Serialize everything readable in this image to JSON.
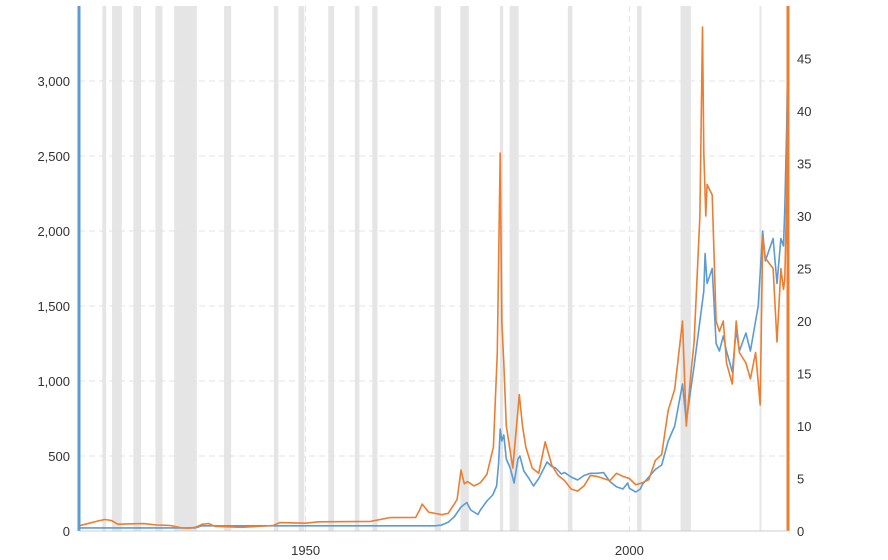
{
  "chart_data": {
    "type": "line",
    "title": "",
    "xlabel": "",
    "ylabel_left": "",
    "ylabel_right": "",
    "x_range": [
      1915,
      2024.5
    ],
    "x_ticks": [
      {
        "value": 1950,
        "label": "1950"
      },
      {
        "value": 2000,
        "label": "2000"
      }
    ],
    "ylim_left": [
      0,
      3500
    ],
    "y_ticks_left": [
      {
        "value": 0,
        "label": "0"
      },
      {
        "value": 500,
        "label": "500"
      },
      {
        "value": 1000,
        "label": "1,000"
      },
      {
        "value": 1500,
        "label": "1,500"
      },
      {
        "value": 2000,
        "label": "2,000"
      },
      {
        "value": 2500,
        "label": "2,500"
      },
      {
        "value": 3000,
        "label": "3,000"
      }
    ],
    "ylim_right": [
      0,
      50
    ],
    "y_ticks_right": [
      {
        "value": 0,
        "label": "0"
      },
      {
        "value": 5,
        "label": "5"
      },
      {
        "value": 10,
        "label": "10"
      },
      {
        "value": 15,
        "label": "15"
      },
      {
        "value": 20,
        "label": "20"
      },
      {
        "value": 25,
        "label": "25"
      },
      {
        "value": 30,
        "label": "30"
      },
      {
        "value": 35,
        "label": "35"
      },
      {
        "value": 40,
        "label": "40"
      },
      {
        "value": 45,
        "label": "45"
      }
    ],
    "grid": true,
    "legend": "none",
    "recessions": [
      [
        1918.6,
        1919.2
      ],
      [
        1920.1,
        1921.6
      ],
      [
        1923.4,
        1924.6
      ],
      [
        1926.8,
        1927.9
      ],
      [
        1929.7,
        1933.2
      ],
      [
        1937.4,
        1938.5
      ],
      [
        1945.1,
        1945.8
      ],
      [
        1948.9,
        1949.8
      ],
      [
        1953.5,
        1954.4
      ],
      [
        1957.6,
        1958.3
      ],
      [
        1960.3,
        1961.1
      ],
      [
        1969.9,
        1970.9
      ],
      [
        1973.9,
        1975.2
      ],
      [
        1980.0,
        1980.5
      ],
      [
        1981.5,
        1982.9
      ],
      [
        1990.5,
        1991.2
      ],
      [
        2001.2,
        2001.9
      ],
      [
        2007.9,
        2009.5
      ],
      [
        2020.1,
        2020.4
      ]
    ],
    "series": [
      {
        "axis": "left",
        "color": "#5b9bd5",
        "points": [
          [
            1915,
            20.7
          ],
          [
            1933,
            20.7
          ],
          [
            1934,
            35
          ],
          [
            1970,
            35
          ],
          [
            1971,
            40
          ],
          [
            1972,
            58
          ],
          [
            1973,
            97
          ],
          [
            1974,
            160
          ],
          [
            1974.9,
            190
          ],
          [
            1975.5,
            140
          ],
          [
            1976.6,
            110
          ],
          [
            1977,
            140
          ],
          [
            1978,
            200
          ],
          [
            1978.9,
            240
          ],
          [
            1979.5,
            300
          ],
          [
            1979.8,
            450
          ],
          [
            1980.05,
            680
          ],
          [
            1980.3,
            600
          ],
          [
            1980.6,
            640
          ],
          [
            1981,
            480
          ],
          [
            1981.6,
            420
          ],
          [
            1982.2,
            320
          ],
          [
            1982.8,
            480
          ],
          [
            1983.1,
            500
          ],
          [
            1983.7,
            400
          ],
          [
            1984.5,
            350
          ],
          [
            1985.2,
            300
          ],
          [
            1986,
            350
          ],
          [
            1987.3,
            460
          ],
          [
            1988,
            430
          ],
          [
            1988.6,
            420
          ],
          [
            1989.5,
            380
          ],
          [
            1990,
            390
          ],
          [
            1991,
            360
          ],
          [
            1992,
            340
          ],
          [
            1993,
            370
          ],
          [
            1994,
            385
          ],
          [
            1995,
            385
          ],
          [
            1996,
            390
          ],
          [
            1997,
            330
          ],
          [
            1998,
            295
          ],
          [
            1999,
            280
          ],
          [
            1999.75,
            320
          ],
          [
            2000,
            285
          ],
          [
            2001,
            260
          ],
          [
            2001.7,
            280
          ],
          [
            2002,
            310
          ],
          [
            2003,
            360
          ],
          [
            2004,
            410
          ],
          [
            2005,
            440
          ],
          [
            2006,
            600
          ],
          [
            2007,
            700
          ],
          [
            2008.2,
            980
          ],
          [
            2008.8,
            730
          ],
          [
            2009.5,
            950
          ],
          [
            2010,
            1100
          ],
          [
            2010.9,
            1400
          ],
          [
            2011.5,
            1600
          ],
          [
            2011.7,
            1850
          ],
          [
            2012,
            1650
          ],
          [
            2012.8,
            1750
          ],
          [
            2013.4,
            1250
          ],
          [
            2013.9,
            1200
          ],
          [
            2014.5,
            1300
          ],
          [
            2015,
            1200
          ],
          [
            2015.9,
            1060
          ],
          [
            2016.5,
            1340
          ],
          [
            2017,
            1200
          ],
          [
            2018,
            1320
          ],
          [
            2018.7,
            1200
          ],
          [
            2019.5,
            1400
          ],
          [
            2019.9,
            1500
          ],
          [
            2020.6,
            2000
          ],
          [
            2021,
            1800
          ],
          [
            2022.2,
            1950
          ],
          [
            2022.8,
            1650
          ],
          [
            2023.4,
            1950
          ],
          [
            2023.8,
            1900
          ],
          [
            2024,
            2150
          ],
          [
            2024.3,
            2700
          ],
          [
            2024.5,
            3300
          ]
        ]
      },
      {
        "axis": "right",
        "color": "#ed7d31",
        "points": [
          [
            1915,
            0.5
          ],
          [
            1916,
            0.65
          ],
          [
            1918,
            0.96
          ],
          [
            1919,
            1.1
          ],
          [
            1920,
            1.0
          ],
          [
            1921,
            0.65
          ],
          [
            1925,
            0.7
          ],
          [
            1927,
            0.57
          ],
          [
            1929,
            0.53
          ],
          [
            1931,
            0.29
          ],
          [
            1932,
            0.28
          ],
          [
            1933,
            0.35
          ],
          [
            1934,
            0.64
          ],
          [
            1935,
            0.71
          ],
          [
            1936,
            0.45
          ],
          [
            1940,
            0.35
          ],
          [
            1945,
            0.52
          ],
          [
            1946,
            0.8
          ],
          [
            1950,
            0.74
          ],
          [
            1952,
            0.88
          ],
          [
            1960,
            0.91
          ],
          [
            1963,
            1.28
          ],
          [
            1967,
            1.3
          ],
          [
            1967.6,
            2.0
          ],
          [
            1968,
            2.56
          ],
          [
            1969,
            1.8
          ],
          [
            1971,
            1.55
          ],
          [
            1972,
            1.68
          ],
          [
            1973,
            2.6
          ],
          [
            1973.4,
            3.0
          ],
          [
            1974,
            5.8
          ],
          [
            1974.5,
            4.5
          ],
          [
            1975,
            4.7
          ],
          [
            1976,
            4.3
          ],
          [
            1977,
            4.6
          ],
          [
            1978,
            5.4
          ],
          [
            1979,
            8.0
          ],
          [
            1979.6,
            17
          ],
          [
            1980.05,
            36
          ],
          [
            1980.3,
            20
          ],
          [
            1980.6,
            16
          ],
          [
            1981,
            10
          ],
          [
            1982,
            6.0
          ],
          [
            1983,
            13.0
          ],
          [
            1983.5,
            10
          ],
          [
            1984,
            8
          ],
          [
            1985,
            6.0
          ],
          [
            1986,
            5.5
          ],
          [
            1987,
            8.5
          ],
          [
            1988,
            6.3
          ],
          [
            1989,
            5.3
          ],
          [
            1990,
            4.8
          ],
          [
            1991,
            4.0
          ],
          [
            1992,
            3.8
          ],
          [
            1993,
            4.3
          ],
          [
            1994,
            5.3
          ],
          [
            1995,
            5.2
          ],
          [
            1996,
            5.0
          ],
          [
            1997,
            4.8
          ],
          [
            1998,
            5.5
          ],
          [
            1999,
            5.2
          ],
          [
            2000,
            5.0
          ],
          [
            2001,
            4.4
          ],
          [
            2002,
            4.6
          ],
          [
            2003,
            4.9
          ],
          [
            2004,
            6.7
          ],
          [
            2005,
            7.3
          ],
          [
            2006,
            11.5
          ],
          [
            2007,
            13.5
          ],
          [
            2008.2,
            20
          ],
          [
            2008.8,
            10
          ],
          [
            2009.5,
            15
          ],
          [
            2010,
            18
          ],
          [
            2010.9,
            30
          ],
          [
            2011.3,
            48
          ],
          [
            2011.5,
            36
          ],
          [
            2011.8,
            30
          ],
          [
            2012,
            33
          ],
          [
            2012.8,
            32
          ],
          [
            2013.4,
            20
          ],
          [
            2013.9,
            19
          ],
          [
            2014.5,
            20
          ],
          [
            2015,
            16
          ],
          [
            2015.9,
            14
          ],
          [
            2016.5,
            20
          ],
          [
            2017,
            17
          ],
          [
            2018,
            16
          ],
          [
            2018.7,
            14.5
          ],
          [
            2019.5,
            17
          ],
          [
            2020.2,
            12
          ],
          [
            2020.6,
            28
          ],
          [
            2021,
            26
          ],
          [
            2022.2,
            25
          ],
          [
            2022.8,
            18
          ],
          [
            2023.4,
            25
          ],
          [
            2023.8,
            23
          ],
          [
            2024,
            24
          ],
          [
            2024.3,
            32
          ],
          [
            2024.5,
            48
          ]
        ]
      }
    ]
  }
}
